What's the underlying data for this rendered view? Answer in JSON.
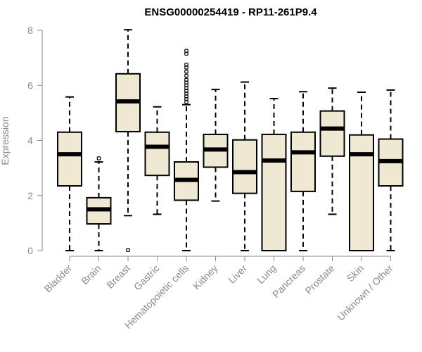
{
  "chart_data": {
    "type": "boxplot",
    "title": "ENSG00000254419 - RP11-261P9.4",
    "xlabel": "",
    "ylabel": "Expression",
    "ylim": [
      0,
      8
    ],
    "yticks": [
      0,
      2,
      4,
      6,
      8
    ],
    "box_fill": "#efe8d2",
    "categories": [
      "Bladder",
      "Brain",
      "Breast",
      "Gastric",
      "Hematopoietic cells",
      "Kidney",
      "Liver",
      "Lung",
      "Pancreas",
      "Prostate",
      "Skin",
      "Unknown / Other"
    ],
    "boxes": [
      {
        "min": 0,
        "q1": 2.35,
        "median": 3.5,
        "q3": 4.3,
        "max": 5.58,
        "outliers": []
      },
      {
        "min": 0,
        "q1": 0.97,
        "median": 1.5,
        "q3": 1.92,
        "max": 3.22,
        "outliers": [
          3.35
        ]
      },
      {
        "min": 1.27,
        "q1": 4.32,
        "median": 5.42,
        "q3": 6.42,
        "max": 8.02,
        "outliers": [
          0.02
        ]
      },
      {
        "min": 1.32,
        "q1": 2.73,
        "median": 3.77,
        "q3": 4.3,
        "max": 5.22,
        "outliers": []
      },
      {
        "min": 0,
        "q1": 1.83,
        "median": 2.57,
        "q3": 3.22,
        "max": 5.3,
        "outliers": [
          5.4,
          5.5,
          5.6,
          5.7,
          5.8,
          5.9,
          6.0,
          6.1,
          6.2,
          6.35,
          6.5,
          6.65,
          6.75,
          7.15,
          7.25
        ]
      },
      {
        "min": 1.8,
        "q1": 3.03,
        "median": 3.67,
        "q3": 4.22,
        "max": 5.85,
        "outliers": []
      },
      {
        "min": 0,
        "q1": 2.08,
        "median": 2.85,
        "q3": 4.02,
        "max": 6.12,
        "outliers": []
      },
      {
        "min": 0,
        "q1": 0,
        "median": 3.27,
        "q3": 4.22,
        "max": 5.52,
        "outliers": []
      },
      {
        "min": 0,
        "q1": 2.15,
        "median": 3.57,
        "q3": 4.3,
        "max": 5.77,
        "outliers": []
      },
      {
        "min": 1.32,
        "q1": 3.43,
        "median": 4.43,
        "q3": 5.07,
        "max": 5.9,
        "outliers": []
      },
      {
        "min": 0,
        "q1": 0,
        "median": 3.5,
        "q3": 4.2,
        "max": 5.75,
        "outliers": []
      },
      {
        "min": 0,
        "q1": 2.35,
        "median": 3.25,
        "q3": 4.05,
        "max": 5.83,
        "outliers": []
      }
    ]
  }
}
